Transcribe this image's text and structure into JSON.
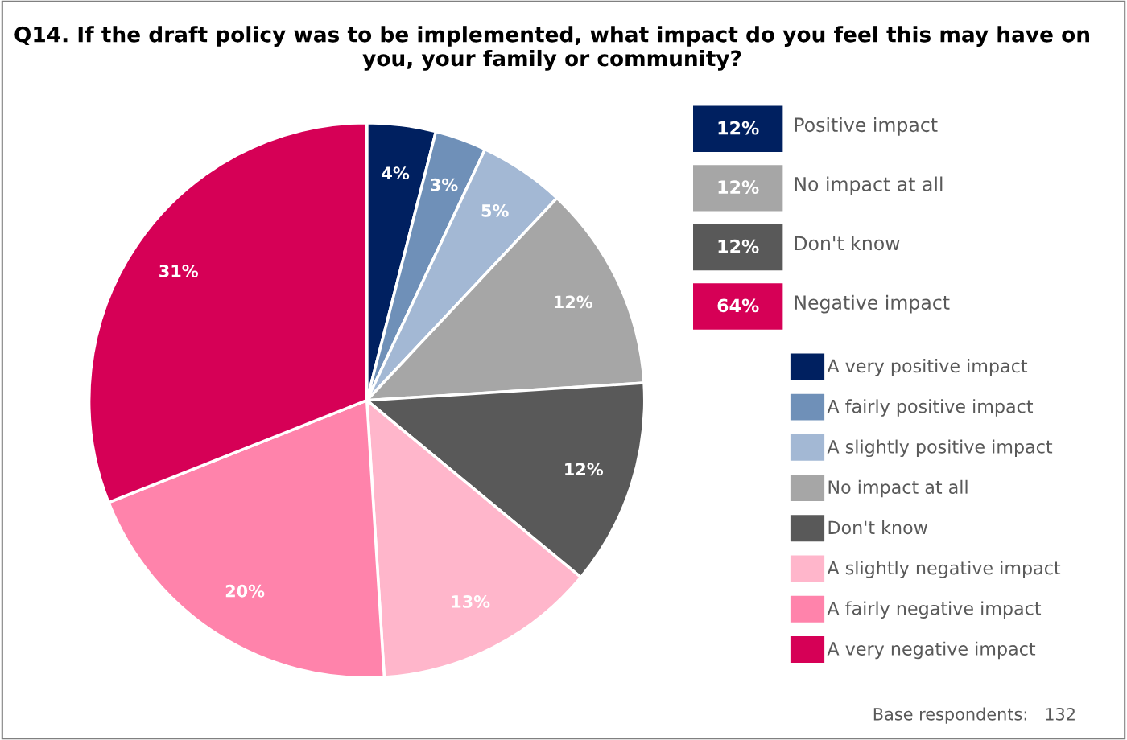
{
  "chart_data": [
    {
      "type": "pie",
      "title": "Q14. If the draft policy was to be implemented, what impact do you feel this may have on you, your family or community?",
      "categories": [
        "A very positive impact",
        "A fairly positive impact",
        "A slightly positive impact",
        "No impact at all",
        "Don't know",
        "A slightly negative impact",
        "A fairly negative impact",
        "A very negative impact"
      ],
      "values": [
        4,
        3,
        5,
        12,
        12,
        13,
        20,
        31
      ],
      "colors": [
        "#002060",
        "#6f90b8",
        "#a3b8d4",
        "#a6a6a6",
        "#595959",
        "#ffb6cb",
        "#ff83ab",
        "#d60056"
      ],
      "value_labels": [
        "4%",
        "3%",
        "5%",
        "12%",
        "12%",
        "13%",
        "20%",
        "31%"
      ],
      "legend": "right",
      "annotations": [
        "Base respondents:   132"
      ]
    },
    {
      "type": "other",
      "categories": [
        "Positive impact",
        "No impact at all",
        "Don't know",
        "Negative impact"
      ],
      "colors": [
        "#002060",
        "#a6a6a6",
        "#595959",
        "#d60056"
      ],
      "value_labels": [
        "12%",
        "12%",
        "12%",
        "64%"
      ]
    }
  ]
}
